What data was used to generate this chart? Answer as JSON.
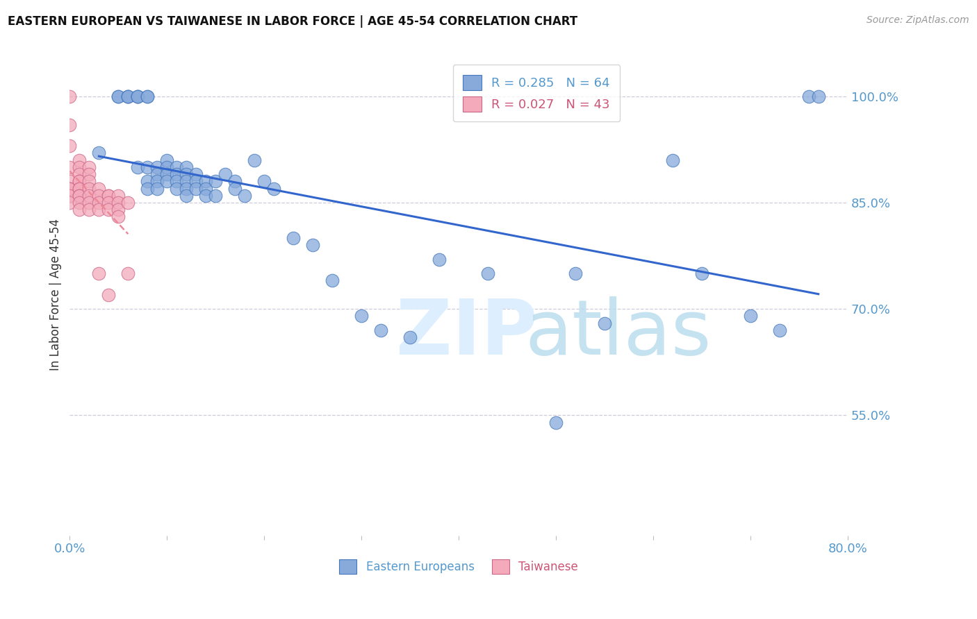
{
  "title": "EASTERN EUROPEAN VS TAIWANESE IN LABOR FORCE | AGE 45-54 CORRELATION CHART",
  "source": "Source: ZipAtlas.com",
  "ylabel": "In Labor Force | Age 45-54",
  "xlim": [
    0.0,
    0.8
  ],
  "ylim": [
    0.38,
    1.06
  ],
  "yticks": [
    0.55,
    0.7,
    0.85,
    1.0
  ],
  "ytick_labels": [
    "55.0%",
    "70.0%",
    "85.0%",
    "100.0%"
  ],
  "xticks": [
    0.0,
    0.1,
    0.2,
    0.3,
    0.4,
    0.5,
    0.6,
    0.7,
    0.8
  ],
  "xtick_labels": [
    "0.0%",
    "",
    "",
    "",
    "",
    "",
    "",
    "",
    "80.0%"
  ],
  "legend_r1": "R = 0.285",
  "legend_n1": "N = 64",
  "legend_r2": "R = 0.027",
  "legend_n2": "N = 43",
  "blue_color": "#87AADB",
  "blue_edge": "#4477BB",
  "pink_color": "#F4AABB",
  "pink_edge": "#CC6688",
  "trend_blue": "#3366CC",
  "trend_pink": "#EE8899",
  "axis_color": "#5599CC",
  "grid_color": "#CCCCDD",
  "blue_scatter_x": [
    0.03,
    0.05,
    0.05,
    0.06,
    0.06,
    0.06,
    0.07,
    0.07,
    0.07,
    0.07,
    0.08,
    0.08,
    0.08,
    0.08,
    0.08,
    0.09,
    0.09,
    0.09,
    0.09,
    0.1,
    0.1,
    0.1,
    0.1,
    0.11,
    0.11,
    0.11,
    0.11,
    0.12,
    0.12,
    0.12,
    0.12,
    0.12,
    0.13,
    0.13,
    0.13,
    0.14,
    0.14,
    0.14,
    0.15,
    0.15,
    0.16,
    0.17,
    0.17,
    0.18,
    0.19,
    0.2,
    0.21,
    0.23,
    0.25,
    0.27,
    0.3,
    0.32,
    0.35,
    0.38,
    0.43,
    0.5,
    0.52,
    0.55,
    0.62,
    0.65,
    0.7,
    0.73,
    0.76,
    0.77
  ],
  "blue_scatter_y": [
    0.92,
    1.0,
    1.0,
    1.0,
    1.0,
    1.0,
    1.0,
    1.0,
    1.0,
    0.9,
    1.0,
    1.0,
    0.9,
    0.88,
    0.87,
    0.9,
    0.89,
    0.88,
    0.87,
    0.91,
    0.9,
    0.89,
    0.88,
    0.9,
    0.89,
    0.88,
    0.87,
    0.9,
    0.89,
    0.88,
    0.87,
    0.86,
    0.89,
    0.88,
    0.87,
    0.88,
    0.87,
    0.86,
    0.88,
    0.86,
    0.89,
    0.88,
    0.87,
    0.86,
    0.91,
    0.88,
    0.87,
    0.8,
    0.79,
    0.74,
    0.69,
    0.67,
    0.66,
    0.77,
    0.75,
    0.54,
    0.75,
    0.68,
    0.91,
    0.75,
    0.69,
    0.67,
    1.0,
    1.0
  ],
  "pink_scatter_x": [
    0.0,
    0.0,
    0.0,
    0.0,
    0.0,
    0.0,
    0.0,
    0.0,
    0.0,
    0.01,
    0.01,
    0.01,
    0.01,
    0.01,
    0.01,
    0.01,
    0.01,
    0.01,
    0.01,
    0.01,
    0.02,
    0.02,
    0.02,
    0.02,
    0.02,
    0.02,
    0.02,
    0.03,
    0.03,
    0.03,
    0.03,
    0.03,
    0.04,
    0.04,
    0.04,
    0.04,
    0.04,
    0.05,
    0.05,
    0.05,
    0.05,
    0.06,
    0.06
  ],
  "pink_scatter_y": [
    1.0,
    0.96,
    0.93,
    0.9,
    0.88,
    0.87,
    0.87,
    0.86,
    0.85,
    0.91,
    0.9,
    0.89,
    0.88,
    0.88,
    0.87,
    0.87,
    0.86,
    0.86,
    0.85,
    0.84,
    0.9,
    0.89,
    0.88,
    0.87,
    0.86,
    0.85,
    0.84,
    0.87,
    0.86,
    0.85,
    0.84,
    0.75,
    0.86,
    0.86,
    0.85,
    0.84,
    0.72,
    0.86,
    0.85,
    0.84,
    0.83,
    0.85,
    0.75
  ]
}
